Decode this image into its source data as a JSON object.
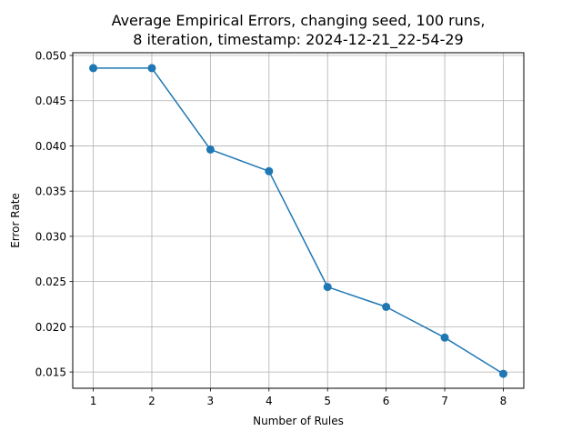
{
  "chart_data": {
    "type": "line",
    "title_lines": [
      "Average Empirical Errors, changing seed, 100 runs,",
      "8 iteration, timestamp: 2024-12-21_22-54-29"
    ],
    "xlabel": "Number of Rules",
    "ylabel": "Error Rate",
    "xlim": [
      0.65,
      8.35
    ],
    "ylim": [
      0.0132,
      0.0503
    ],
    "x_ticks": [
      1,
      2,
      3,
      4,
      5,
      6,
      7,
      8
    ],
    "x_tick_labels": [
      "1",
      "2",
      "3",
      "4",
      "5",
      "6",
      "7",
      "8"
    ],
    "y_ticks": [
      0.015,
      0.02,
      0.025,
      0.03,
      0.035,
      0.04,
      0.045,
      0.05
    ],
    "y_tick_labels": [
      "0.015",
      "0.020",
      "0.025",
      "0.030",
      "0.035",
      "0.040",
      "0.045",
      "0.050"
    ],
    "grid": true,
    "series": [
      {
        "color": "#1f77b4",
        "marker": "circle",
        "x": [
          1,
          2,
          3,
          4,
          5,
          6,
          7,
          8
        ],
        "y": [
          0.0486,
          0.0486,
          0.0396,
          0.0372,
          0.0244,
          0.0222,
          0.0188,
          0.0148
        ]
      }
    ]
  }
}
